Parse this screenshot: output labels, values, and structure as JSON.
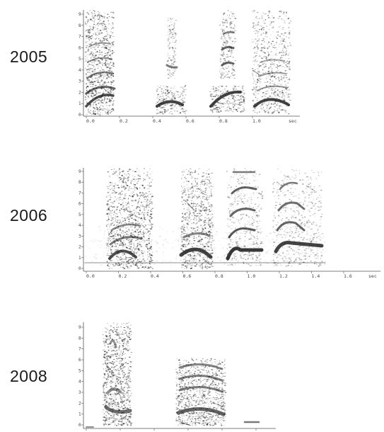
{
  "panels": [
    {
      "year": "2005",
      "y_ticks": [
        "0",
        "1",
        "2",
        "3",
        "4",
        "5",
        "6",
        "7",
        "8",
        "9"
      ],
      "x_ticks": [
        "0.0",
        "0.2",
        "0.4",
        "0.6",
        "0.8",
        "1.0"
      ],
      "x_unit": "sec"
    },
    {
      "year": "2006",
      "y_ticks": [
        "0",
        "1",
        "2",
        "3",
        "4",
        "5",
        "6",
        "7",
        "8",
        "9"
      ],
      "x_ticks": [
        "0.0",
        "0.2",
        "0.4",
        "0.6",
        "0.8",
        "1.0",
        "1.2",
        "1.4",
        "1.6"
      ],
      "x_unit": "sec"
    },
    {
      "year": "2008",
      "y_ticks": [
        "0",
        "1",
        "2",
        "3",
        "4",
        "5",
        "6",
        "7",
        "8",
        "9"
      ],
      "x_ticks": [
        "",
        "",
        "",
        "",
        "",
        ""
      ],
      "x_unit": ""
    }
  ]
}
